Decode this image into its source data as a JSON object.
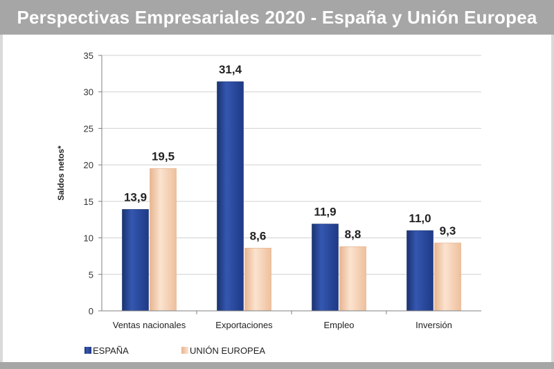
{
  "title": "Perspectivas Empresariales 2020 - España y Unión Europea",
  "colors": {
    "espana": "#2a4a9c",
    "espana_dark": "#1b3270",
    "ue": "#f2c9a8",
    "ue_light": "#fbe8d6",
    "grid": "#d0d0d0",
    "axis": "#7f7f7f"
  },
  "chart_data": {
    "type": "bar",
    "title": "Perspectivas Empresariales 2020 - España y Unión Europea",
    "ylabel": "Saldos netos*",
    "xlabel": "",
    "categories": [
      "Ventas nacionales",
      "Exportaciones",
      "Empleo",
      "Inversión"
    ],
    "series": [
      {
        "name": "ESPAÑA",
        "values": [
          13.9,
          31.4,
          11.9,
          11.0
        ],
        "labels": [
          "13,9",
          "31,4",
          "11,9",
          "11,0"
        ]
      },
      {
        "name": "UNIÓN EUROPEA",
        "values": [
          19.5,
          8.6,
          8.8,
          9.3
        ],
        "labels": [
          "19,5",
          "8,6",
          "8,8",
          "9,3"
        ]
      }
    ],
    "ylim": [
      0,
      35
    ],
    "yticks": [
      0,
      5,
      10,
      15,
      20,
      25,
      30,
      35
    ],
    "grid": true,
    "legend": "bottom-left"
  }
}
